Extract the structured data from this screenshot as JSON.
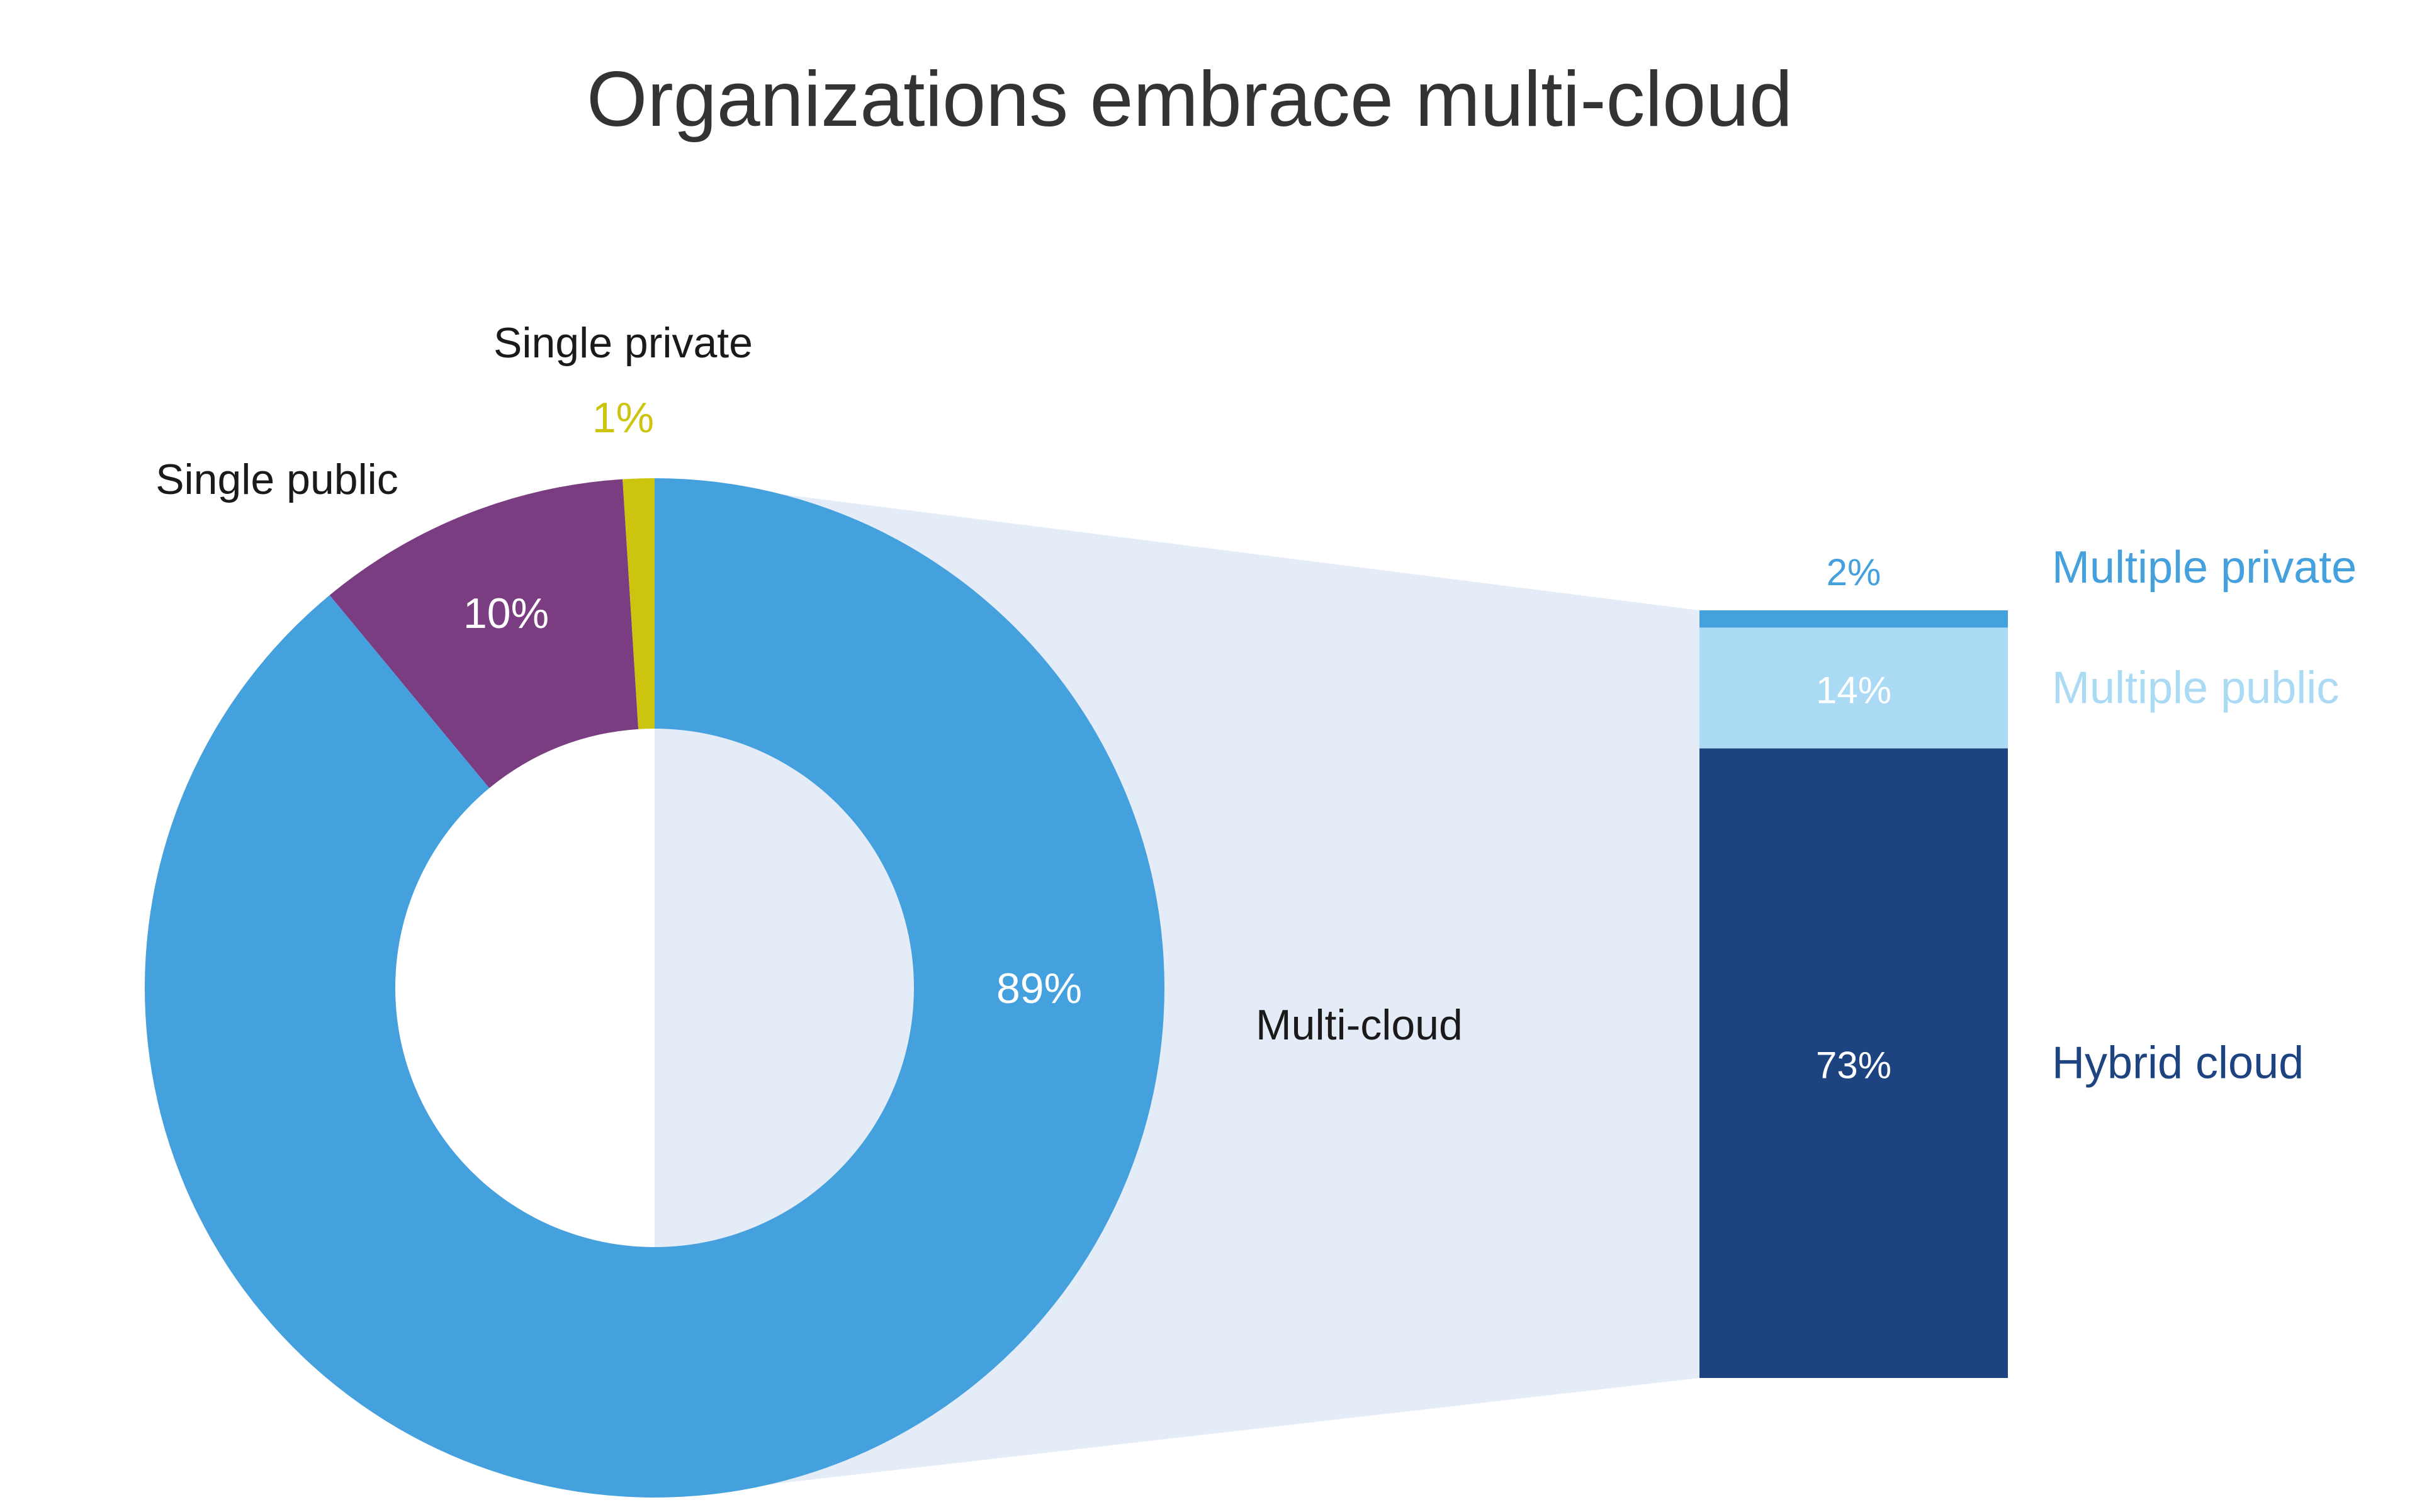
{
  "colors": {
    "background": "#ffffff",
    "title": "#333333",
    "multi_cloud": "#45a0de",
    "single_public": "#7b3d82",
    "single_private": "#cdc410",
    "connector": "#e4ecf8",
    "multiple_private": "#45a0de",
    "multiple_public": "#abdaf4",
    "hybrid_cloud": "#1d4480",
    "label_dark": "#1a1a1a",
    "label_white": "#ffffff"
  },
  "chart_data": [
    {
      "type": "pie",
      "variant": "donut",
      "title": "Organizations embrace multi-cloud",
      "slices": [
        {
          "label": "Multi-cloud",
          "value": 89,
          "value_label": "89%",
          "color": "#45a0de"
        },
        {
          "label": "Single public",
          "value": 10,
          "value_label": "10%",
          "color": "#7b3d82"
        },
        {
          "label": "Single private",
          "value": 1,
          "value_label": "1%",
          "color": "#cdc410"
        }
      ]
    },
    {
      "type": "bar",
      "variant": "stacked-breakdown",
      "breakdown_of": "Multi-cloud",
      "segments": [
        {
          "label": "Hybrid cloud",
          "value": 73,
          "value_label": "73%",
          "color": "#1d4480"
        },
        {
          "label": "Multiple public",
          "value": 14,
          "value_label": "14%",
          "color": "#abdaf4"
        },
        {
          "label": "Multiple private",
          "value": 2,
          "value_label": "2%",
          "color": "#45a0de"
        }
      ]
    }
  ]
}
